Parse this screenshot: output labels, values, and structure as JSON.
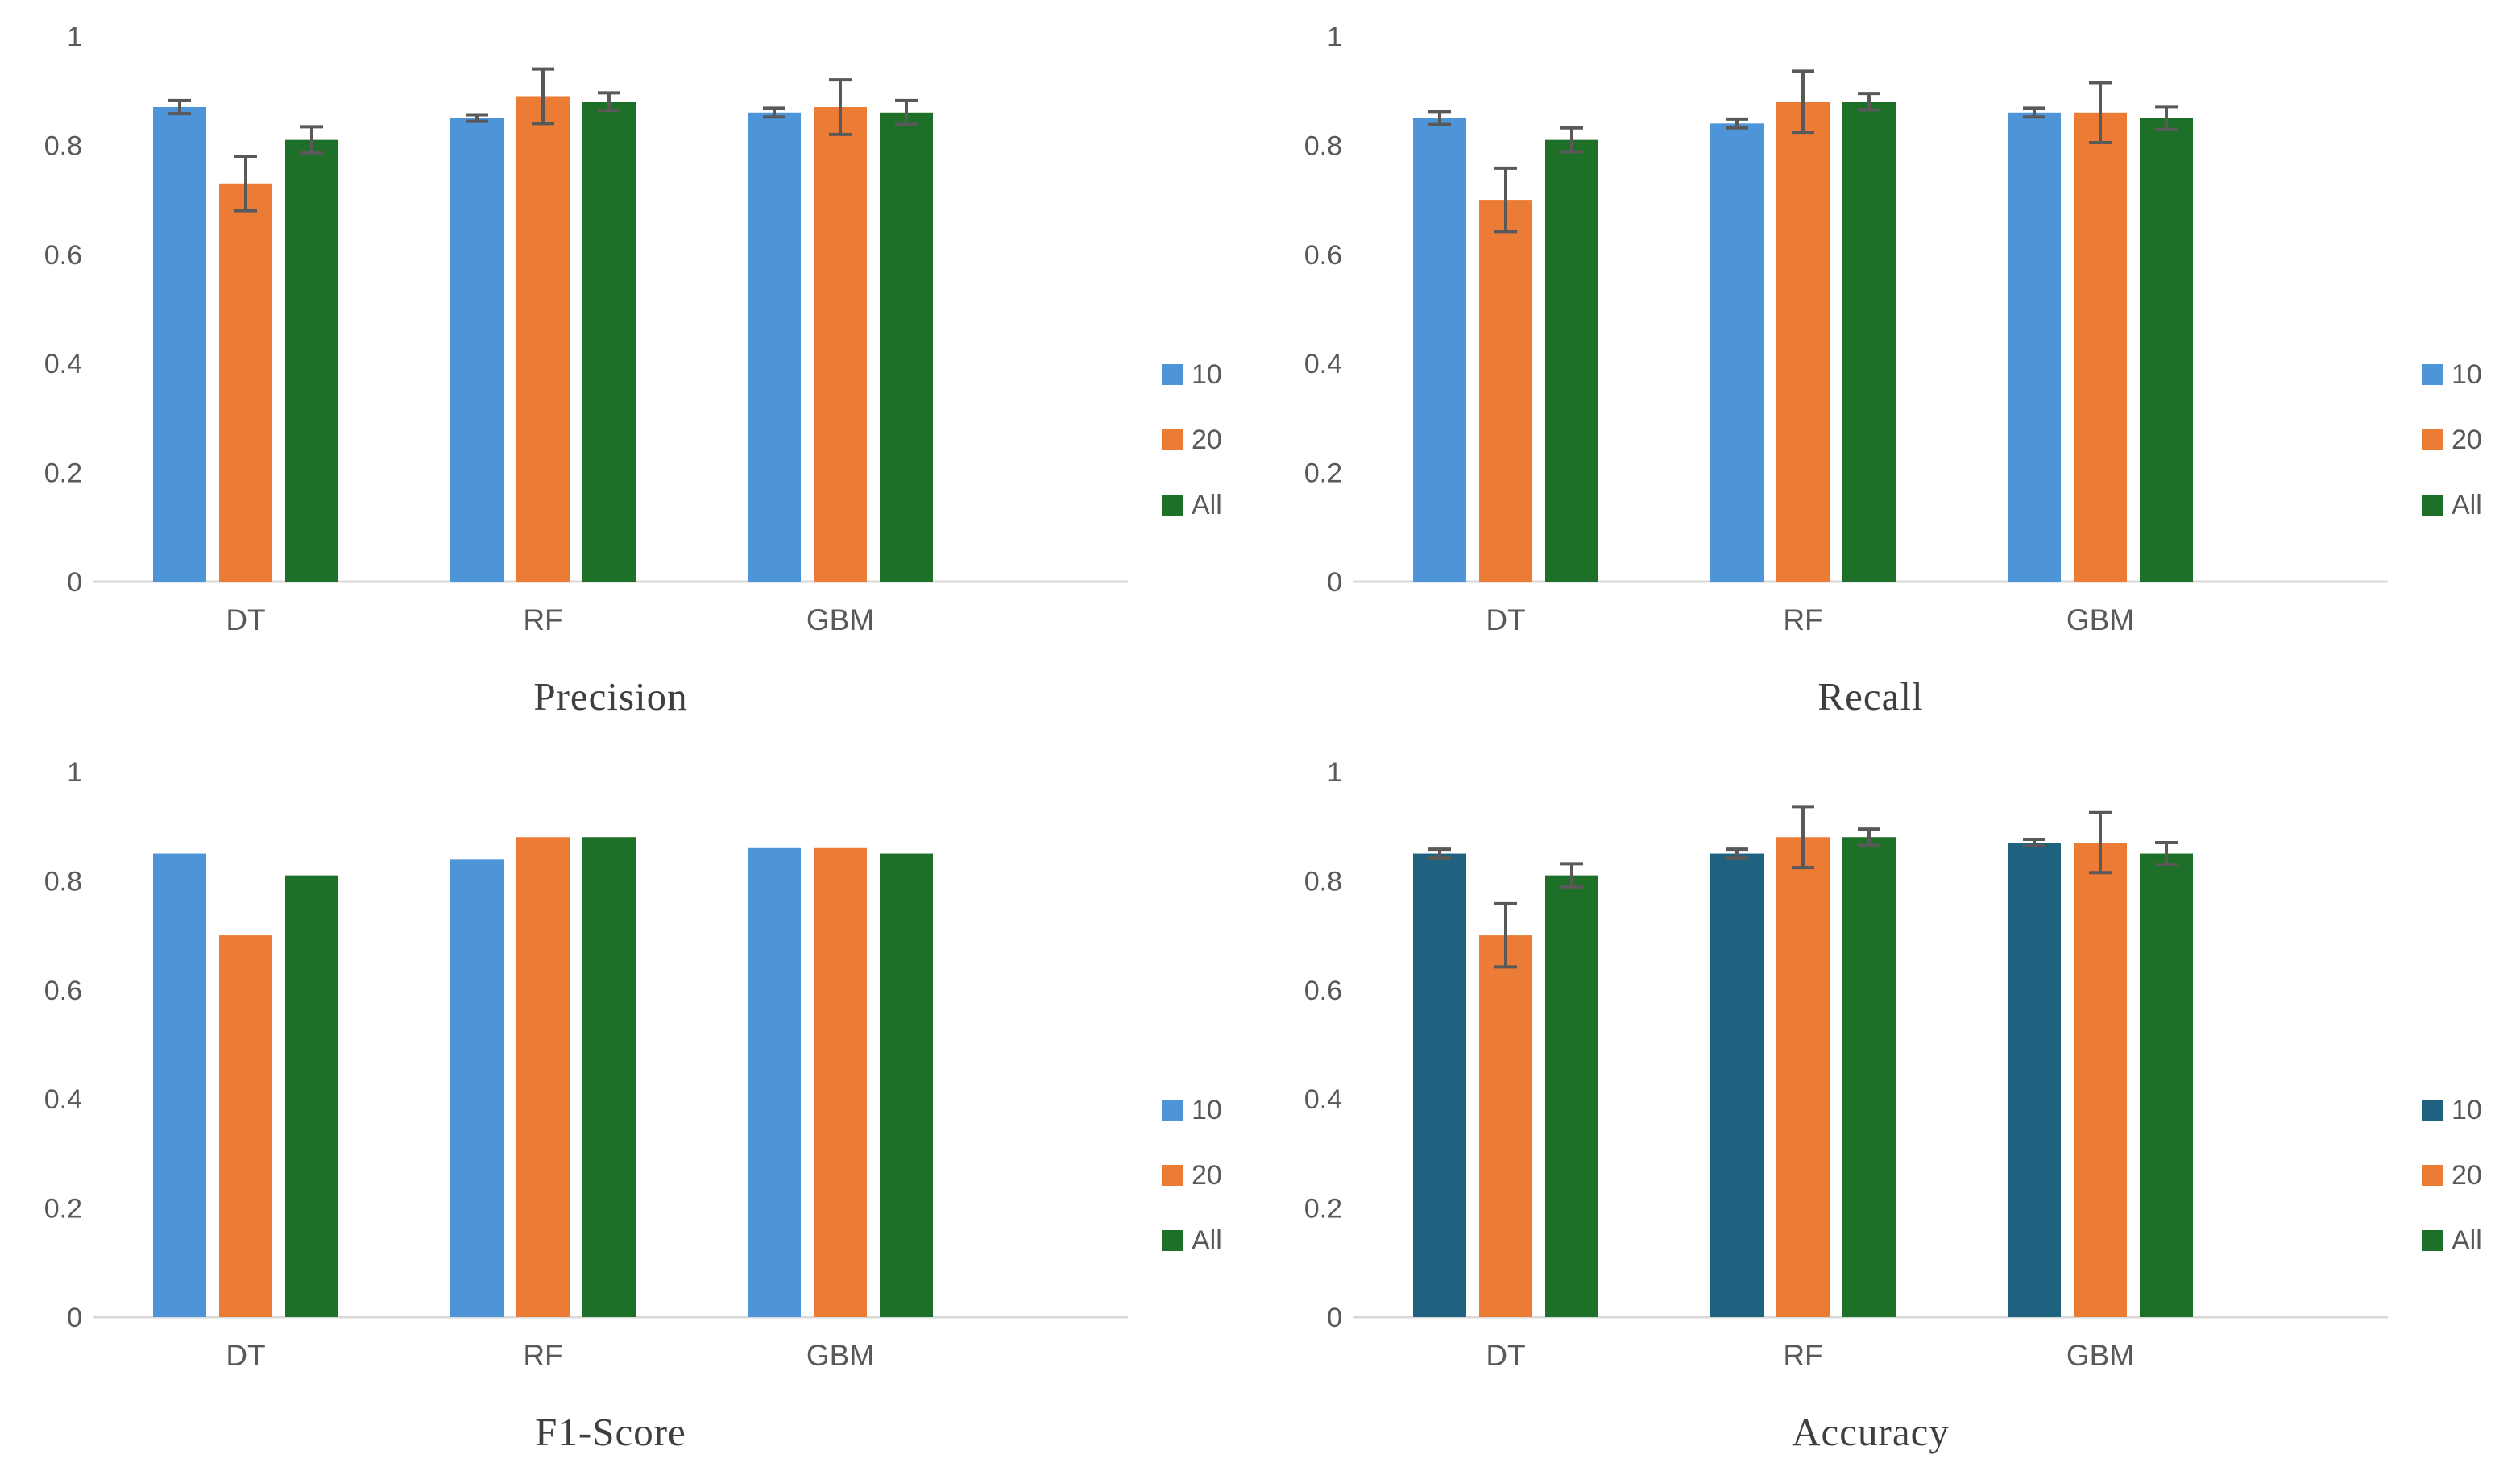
{
  "colors": {
    "background": "#FFFFFF",
    "axis_line": "#D9D9D9",
    "tick_text": "#595959",
    "category_text": "#595959",
    "error_bar": "#595959",
    "title_text": "#3F3F3F",
    "series_blue": "#4D94D8",
    "series_orange": "#EC7B36",
    "series_green": "#1E7029",
    "series_dark_teal": "#1F627F"
  },
  "chart_data": [
    {
      "type": "bar",
      "title": "Precision",
      "categories": [
        "DT",
        "RF",
        "GBM"
      ],
      "ylim": [
        0,
        1
      ],
      "yticks": [
        0,
        0.2,
        0.4,
        0.6,
        0.8,
        1
      ],
      "ytick_labels": [
        "0",
        "0.2",
        "0.4",
        "0.6",
        "0.8",
        "1"
      ],
      "grid": false,
      "legend_position": "right",
      "series": [
        {
          "name": "10",
          "color": "#4D94D8",
          "values": [
            0.87,
            0.85,
            0.86
          ],
          "errors": [
            0.012,
            0.006,
            0.008
          ]
        },
        {
          "name": "20",
          "color": "#EC7B36",
          "values": [
            0.73,
            0.89,
            0.87
          ],
          "errors": [
            0.05,
            0.05,
            0.05
          ]
        },
        {
          "name": "All",
          "color": "#1E7029",
          "values": [
            0.81,
            0.88,
            0.86
          ],
          "errors": [
            0.024,
            0.016,
            0.022
          ]
        }
      ]
    },
    {
      "type": "bar",
      "title": "Recall",
      "categories": [
        "DT",
        "RF",
        "GBM"
      ],
      "ylim": [
        0,
        1
      ],
      "yticks": [
        0,
        0.2,
        0.4,
        0.6,
        0.8,
        1
      ],
      "ytick_labels": [
        "0",
        "0.2",
        "0.4",
        "0.6",
        "0.8",
        "1"
      ],
      "grid": false,
      "legend_position": "right",
      "series": [
        {
          "name": "10",
          "color": "#4D94D8",
          "values": [
            0.85,
            0.84,
            0.86
          ],
          "errors": [
            0.012,
            0.008,
            0.008
          ]
        },
        {
          "name": "20",
          "color": "#EC7B36",
          "values": [
            0.7,
            0.88,
            0.86
          ],
          "errors": [
            0.058,
            0.056,
            0.055
          ]
        },
        {
          "name": "All",
          "color": "#1E7029",
          "values": [
            0.81,
            0.88,
            0.85
          ],
          "errors": [
            0.022,
            0.015,
            0.021
          ]
        }
      ]
    },
    {
      "type": "bar",
      "title": "F1-Score",
      "categories": [
        "DT",
        "RF",
        "GBM"
      ],
      "ylim": [
        0,
        1
      ],
      "yticks": [
        0,
        0.2,
        0.4,
        0.6,
        0.8,
        1
      ],
      "ytick_labels": [
        "0",
        "0.2",
        "0.4",
        "0.6",
        "0.8",
        "1"
      ],
      "grid": false,
      "legend_position": "right",
      "series": [
        {
          "name": "10",
          "color": "#4D94D8",
          "values": [
            0.85,
            0.84,
            0.86
          ],
          "errors": null
        },
        {
          "name": "20",
          "color": "#EC7B36",
          "values": [
            0.7,
            0.88,
            0.86
          ],
          "errors": null
        },
        {
          "name": "All",
          "color": "#1E7029",
          "values": [
            0.81,
            0.88,
            0.85
          ],
          "errors": null
        }
      ]
    },
    {
      "type": "bar",
      "title": "Accuracy",
      "categories": [
        "DT",
        "RF",
        "GBM"
      ],
      "ylim": [
        0,
        1
      ],
      "yticks": [
        0,
        0.2,
        0.4,
        0.6,
        0.8,
        1
      ],
      "ytick_labels": [
        "0",
        "0.2",
        "0.4",
        "0.6",
        "0.8",
        "1"
      ],
      "grid": false,
      "legend_position": "right",
      "series": [
        {
          "name": "10",
          "color": "#1F627F",
          "values": [
            0.85,
            0.85,
            0.87
          ],
          "errors": [
            0.008,
            0.008,
            0.006
          ]
        },
        {
          "name": "20",
          "color": "#EC7B36",
          "values": [
            0.7,
            0.88,
            0.87
          ],
          "errors": [
            0.058,
            0.056,
            0.055
          ]
        },
        {
          "name": "All",
          "color": "#1E7029",
          "values": [
            0.81,
            0.88,
            0.85
          ],
          "errors": [
            0.021,
            0.015,
            0.02
          ]
        }
      ]
    }
  ]
}
